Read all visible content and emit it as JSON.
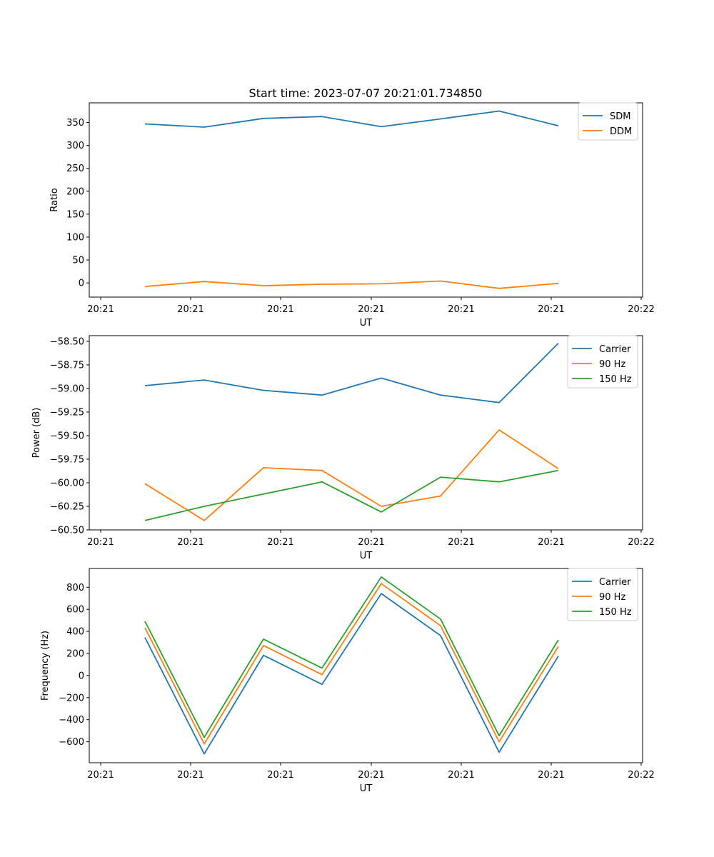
{
  "chart_data": [
    {
      "type": "line",
      "title": "Start time: 2023-07-07 20:21:01.734850",
      "xlabel": "UT",
      "ylabel": "Ratio",
      "x_tick_labels": [
        "20:21",
        "20:21",
        "20:21",
        "20:21",
        "20:21",
        "20:21",
        "20:22"
      ],
      "y_ticks": [
        0,
        50,
        100,
        150,
        200,
        250,
        300,
        350
      ],
      "y_tick_labels": [
        "0",
        "50",
        "100",
        "150",
        "200",
        "250",
        "300",
        "350"
      ],
      "ylim": [
        -31,
        393
      ],
      "legend_position": "top-right",
      "series": [
        {
          "name": "SDM",
          "color": "#1f77b4",
          "values": [
            347,
            340,
            359,
            363,
            341,
            358,
            375,
            343
          ]
        },
        {
          "name": "DDM",
          "color": "#ff7f0e",
          "values": [
            -8,
            3,
            -6,
            -3,
            -2,
            4,
            -12,
            -1
          ]
        }
      ]
    },
    {
      "type": "line",
      "title": "",
      "xlabel": "UT",
      "ylabel": "Power (dB)",
      "x_tick_labels": [
        "20:21",
        "20:21",
        "20:21",
        "20:21",
        "20:21",
        "20:21",
        "20:22"
      ],
      "y_ticks": [
        -60.5,
        -60.25,
        -60.0,
        -59.75,
        -59.5,
        -59.25,
        -59.0,
        -58.75,
        -58.5
      ],
      "y_tick_labels": [
        "−60.50",
        "−60.25",
        "−60.00",
        "−59.75",
        "−59.50",
        "−59.25",
        "−59.00",
        "−58.75",
        "−58.50"
      ],
      "ylim": [
        -60.5,
        -58.44
      ],
      "legend_position": "top-right",
      "series": [
        {
          "name": "Carrier",
          "color": "#1f77b4",
          "values": [
            -58.97,
            -58.91,
            -59.02,
            -59.07,
            -58.89,
            -59.07,
            -59.15,
            -58.52
          ]
        },
        {
          "name": "90 Hz",
          "color": "#ff7f0e",
          "values": [
            -60.01,
            -60.4,
            -59.84,
            -59.87,
            -60.25,
            -60.14,
            -59.44,
            -59.85
          ]
        },
        {
          "name": "150 Hz",
          "color": "#2ca02c",
          "values": [
            -60.4,
            -60.25,
            -60.12,
            -59.99,
            -60.31,
            -59.94,
            -59.99,
            -59.87
          ]
        }
      ]
    },
    {
      "type": "line",
      "title": "",
      "xlabel": "UT",
      "ylabel": "Frequency (Hz)",
      "x_tick_labels": [
        "20:21",
        "20:21",
        "20:21",
        "20:21",
        "20:21",
        "20:21",
        "20:22"
      ],
      "y_ticks": [
        -600,
        -400,
        -200,
        0,
        200,
        400,
        600,
        800
      ],
      "y_tick_labels": [
        "−600",
        "−400",
        "−200",
        "0",
        "200",
        "400",
        "600",
        "800"
      ],
      "ylim": [
        -790,
        970
      ],
      "legend_position": "top-right",
      "series": [
        {
          "name": "Carrier",
          "color": "#1f77b4",
          "values": [
            345,
            -710,
            183,
            -80,
            743,
            362,
            -695,
            176
          ]
        },
        {
          "name": "90 Hz",
          "color": "#ff7f0e",
          "values": [
            432,
            -620,
            272,
            8,
            833,
            452,
            -600,
            264
          ]
        },
        {
          "name": "150 Hz",
          "color": "#2ca02c",
          "values": [
            492,
            -560,
            330,
            68,
            893,
            512,
            -545,
            322
          ]
        }
      ]
    }
  ]
}
